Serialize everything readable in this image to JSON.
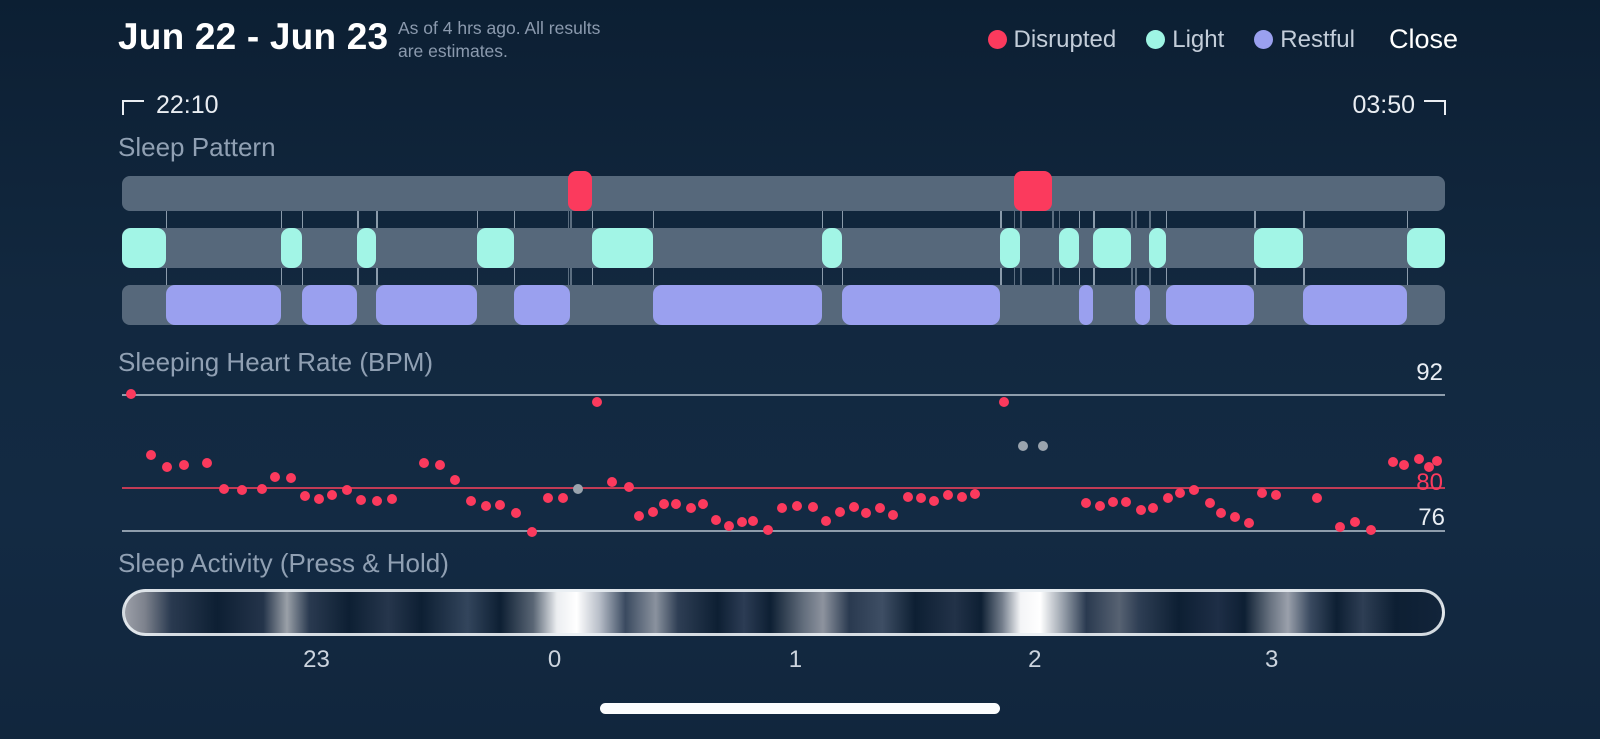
{
  "header": {
    "title": "Jun 22 - Jun 23",
    "subtitle_line1": "As of 4 hrs ago. All results",
    "subtitle_line2": "are estimates.",
    "legend": [
      {
        "label": "Disrupted",
        "color": "#fb3a5d"
      },
      {
        "label": "Light",
        "color": "#9ef5e4"
      },
      {
        "label": "Restful",
        "color": "#9aa0ef"
      }
    ],
    "close_label": "Close"
  },
  "time_range": {
    "start": "22:10",
    "end": "03:50"
  },
  "sleep_pattern": {
    "section_label": "Sleep Pattern",
    "colors": {
      "track_bg": "#56687b",
      "disrupted": "#fb3a5d",
      "light": "#a2f5e6",
      "restful": "#9aa0ef"
    },
    "disrupted_segments": [
      {
        "start": 33.7,
        "end": 35.5
      },
      {
        "start": 67.4,
        "end": 70.3
      }
    ],
    "light_segments": [
      {
        "start": 0,
        "end": 3.3
      },
      {
        "start": 12.0,
        "end": 13.6
      },
      {
        "start": 17.8,
        "end": 19.2
      },
      {
        "start": 26.8,
        "end": 29.6
      },
      {
        "start": 35.5,
        "end": 40.1
      },
      {
        "start": 52.9,
        "end": 54.4
      },
      {
        "start": 66.4,
        "end": 67.9
      },
      {
        "start": 70.8,
        "end": 72.3
      },
      {
        "start": 73.4,
        "end": 76.3
      },
      {
        "start": 77.6,
        "end": 78.9
      },
      {
        "start": 85.6,
        "end": 89.3
      },
      {
        "start": 97.1,
        "end": 100
      }
    ],
    "restful_segments": [
      {
        "start": 3.3,
        "end": 12.0
      },
      {
        "start": 13.6,
        "end": 17.8
      },
      {
        "start": 19.2,
        "end": 26.8
      },
      {
        "start": 29.6,
        "end": 33.9
      },
      {
        "start": 40.1,
        "end": 52.9
      },
      {
        "start": 54.4,
        "end": 66.4
      },
      {
        "start": 72.3,
        "end": 73.4
      },
      {
        "start": 76.6,
        "end": 77.7
      },
      {
        "start": 78.9,
        "end": 85.6
      },
      {
        "start": 89.3,
        "end": 97.1
      }
    ]
  },
  "heart_rate": {
    "section_label": "Sleeping Heart Rate (BPM)",
    "axis": {
      "max_label": "92",
      "mid_label": "80",
      "min_label": "76",
      "max": 92,
      "mid": 80,
      "min": 76
    },
    "dot_color": "#fb3a5d",
    "gray_dot_color": "#9aa4ae",
    "points": [
      [
        0.007,
        92.0
      ],
      [
        0.022,
        84.8
      ],
      [
        0.034,
        83.4
      ],
      [
        0.047,
        83.6
      ],
      [
        0.064,
        83.9
      ],
      [
        0.077,
        80.8
      ],
      [
        0.091,
        80.7
      ],
      [
        0.106,
        80.8
      ],
      [
        0.116,
        82.2
      ],
      [
        0.128,
        82.1
      ],
      [
        0.138,
        80.0
      ],
      [
        0.149,
        79.6
      ],
      [
        0.159,
        80.1
      ],
      [
        0.17,
        80.7
      ],
      [
        0.181,
        79.5
      ],
      [
        0.193,
        79.4
      ],
      [
        0.204,
        79.6
      ],
      [
        0.228,
        83.9
      ],
      [
        0.24,
        83.6
      ],
      [
        0.252,
        81.9
      ],
      [
        0.264,
        79.4
      ],
      [
        0.275,
        78.8
      ],
      [
        0.286,
        78.9
      ],
      [
        0.298,
        78.0
      ],
      [
        0.31,
        75.8
      ],
      [
        0.322,
        79.8
      ],
      [
        0.333,
        79.8
      ],
      [
        0.359,
        91.1
      ],
      [
        0.37,
        81.6
      ],
      [
        0.383,
        81.1
      ],
      [
        0.391,
        77.6
      ],
      [
        0.401,
        78.1
      ],
      [
        0.41,
        79.1
      ],
      [
        0.419,
        79.1
      ],
      [
        0.43,
        78.6
      ],
      [
        0.439,
        79.1
      ],
      [
        0.449,
        77.2
      ],
      [
        0.459,
        76.5
      ],
      [
        0.469,
        76.9
      ],
      [
        0.477,
        77.1
      ],
      [
        0.488,
        76.0
      ],
      [
        0.499,
        78.6
      ],
      [
        0.51,
        78.8
      ],
      [
        0.522,
        78.7
      ],
      [
        0.532,
        77.1
      ],
      [
        0.543,
        78.1
      ],
      [
        0.553,
        78.7
      ],
      [
        0.562,
        78.0
      ],
      [
        0.573,
        78.6
      ],
      [
        0.583,
        77.8
      ],
      [
        0.594,
        79.9
      ],
      [
        0.604,
        79.8
      ],
      [
        0.614,
        79.4
      ],
      [
        0.624,
        80.1
      ],
      [
        0.635,
        79.9
      ],
      [
        0.645,
        80.2
      ],
      [
        0.667,
        91.1
      ],
      [
        0.729,
        79.2
      ],
      [
        0.739,
        78.8
      ],
      [
        0.749,
        79.3
      ],
      [
        0.759,
        79.3
      ],
      [
        0.77,
        78.4
      ],
      [
        0.779,
        78.6
      ],
      [
        0.791,
        79.8
      ],
      [
        0.8,
        80.4
      ],
      [
        0.81,
        80.7
      ],
      [
        0.822,
        79.2
      ],
      [
        0.831,
        78.0
      ],
      [
        0.841,
        77.5
      ],
      [
        0.852,
        76.8
      ],
      [
        0.862,
        80.4
      ],
      [
        0.872,
        80.1
      ],
      [
        0.903,
        79.8
      ],
      [
        0.921,
        76.4
      ],
      [
        0.932,
        76.9
      ],
      [
        0.944,
        76.0
      ],
      [
        0.961,
        84.0
      ],
      [
        0.969,
        83.6
      ],
      [
        0.98,
        84.4
      ],
      [
        0.988,
        83.4
      ],
      [
        0.994,
        84.1
      ]
    ],
    "gray_points": [
      [
        0.345,
        80.8
      ],
      [
        0.681,
        85.9
      ],
      [
        0.696,
        85.9
      ]
    ]
  },
  "sleep_activity": {
    "section_label": "Sleep Activity (Press & Hold)",
    "hour_labels": [
      {
        "label": "23",
        "f": 0.147
      },
      {
        "label": "0",
        "f": 0.327
      },
      {
        "label": "1",
        "f": 0.509
      },
      {
        "label": "2",
        "f": 0.69
      },
      {
        "label": "3",
        "f": 0.869
      }
    ],
    "gradient_stops": [
      [
        "0%",
        "#9b9fa8"
      ],
      [
        "1.5%",
        "#7d828d"
      ],
      [
        "3.5%",
        "#2a3a50"
      ],
      [
        "7%",
        "#0d1f33"
      ],
      [
        "10.5%",
        "#24344a"
      ],
      [
        "12.3%",
        "#9aa0a8"
      ],
      [
        "14%",
        "#2a3a50"
      ],
      [
        "17%",
        "#0d1f33"
      ],
      [
        "20%",
        "#26364c"
      ],
      [
        "22.5%",
        "#0d1f33"
      ],
      [
        "26%",
        "#33455c"
      ],
      [
        "28.5%",
        "#0d1f33"
      ],
      [
        "31%",
        "#5a6675"
      ],
      [
        "32.8%",
        "#eceef1"
      ],
      [
        "34.3%",
        "#ffffff"
      ],
      [
        "36%",
        "#b9bfc9"
      ],
      [
        "38%",
        "#3a4a60"
      ],
      [
        "40.3%",
        "#8a929e"
      ],
      [
        "42%",
        "#2e3e54"
      ],
      [
        "45%",
        "#0d1f33"
      ],
      [
        "47%",
        "#2c3c54"
      ],
      [
        "49%",
        "#0d1f33"
      ],
      [
        "51.5%",
        "#626d7c"
      ],
      [
        "53%",
        "#8d939e"
      ],
      [
        "55%",
        "#2a3a50"
      ],
      [
        "57.5%",
        "#3e4e64"
      ],
      [
        "60%",
        "#0d1f33"
      ],
      [
        "63%",
        "#223248"
      ],
      [
        "65%",
        "#0d1f33"
      ],
      [
        "66.6%",
        "#747e8c"
      ],
      [
        "68%",
        "#f4f5f7"
      ],
      [
        "69.5%",
        "#ffffff"
      ],
      [
        "71.2%",
        "#9aa2ad"
      ],
      [
        "73%",
        "#2a3a50"
      ],
      [
        "75.5%",
        "#576272"
      ],
      [
        "77%",
        "#2e3e54"
      ],
      [
        "80%",
        "#0d1f33"
      ],
      [
        "83%",
        "#1e2e46"
      ],
      [
        "85%",
        "#0d1f33"
      ],
      [
        "87%",
        "#6a7482"
      ],
      [
        "88.3%",
        "#9aa0ab"
      ],
      [
        "90%",
        "#3a4a60"
      ],
      [
        "92%",
        "#0d1f33"
      ],
      [
        "94%",
        "#2e3e54"
      ],
      [
        "96.5%",
        "#0d1f33"
      ],
      [
        "100%",
        "#12243a"
      ]
    ]
  }
}
